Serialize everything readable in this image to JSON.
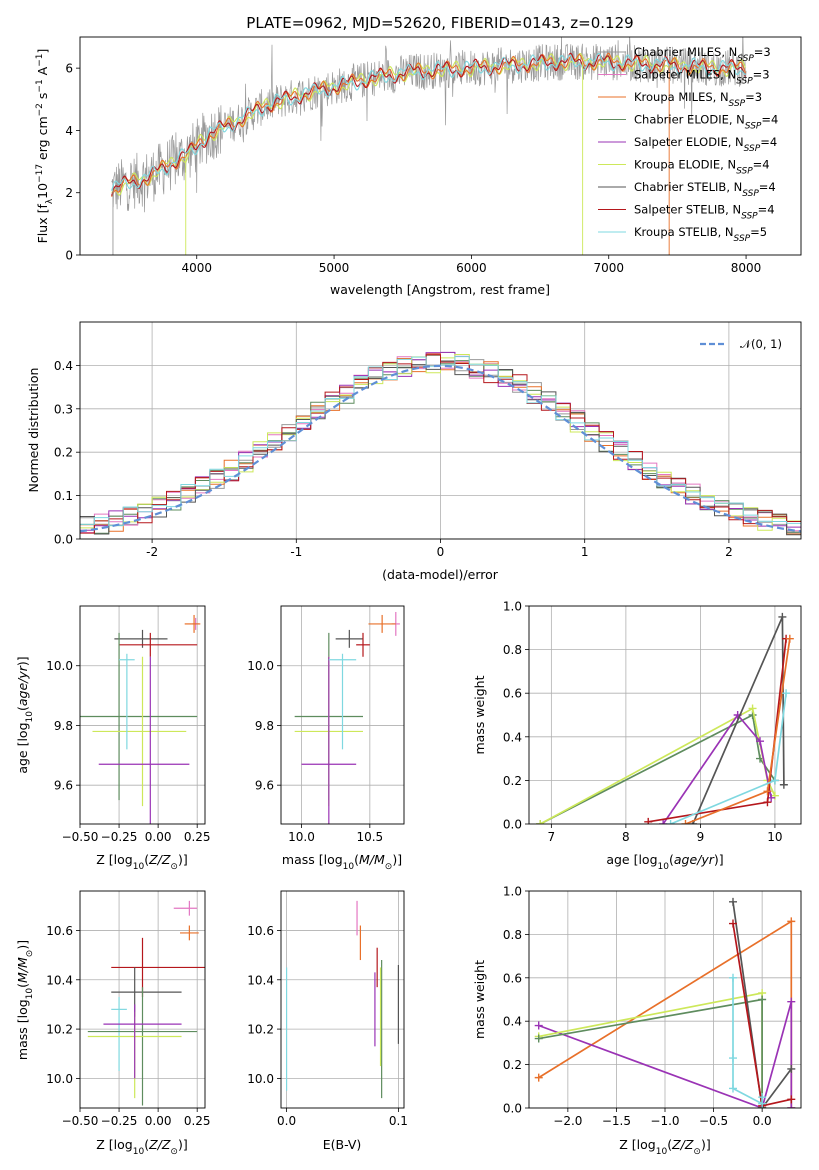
{
  "figure_title": "PLATE=0962, MJD=52620, FIBERID=0143, z=0.129",
  "colors": {
    "Chabrier MILES": "#999999",
    "Salpeter MILES": "#e377c2",
    "Kroupa MILES": "#e8702a",
    "Chabrier ELODIE": "#5e8c5e",
    "Salpeter ELODIE": "#9a33b5",
    "Kroupa ELODIE": "#cde85a",
    "Chabrier STELIB": "#555555",
    "Salpeter STELIB": "#b5171c",
    "Kroupa STELIB": "#7fd8e0",
    "gaussian": "#5f8fd6"
  },
  "chart_data": [
    {
      "id": "spectrum",
      "type": "line",
      "xlabel": "wavelength [Angstrom, rest frame]",
      "ylabel_parts": [
        "Flux [f",
        "λ",
        "10",
        "−17",
        " erg cm",
        "−2",
        " s",
        "−1",
        " A",
        "−1",
        "]"
      ],
      "xlim": [
        3150,
        8400
      ],
      "ylim": [
        0,
        7.0
      ],
      "xticks": [
        4000,
        5000,
        6000,
        7000,
        8000
      ],
      "yticks": [
        0,
        2,
        4,
        6
      ],
      "grid": false,
      "legend_position": "right",
      "legend": [
        {
          "pre": "Chabrier MILES, N",
          "sub": "SSP",
          "post": "=3",
          "key": "Chabrier MILES"
        },
        {
          "pre": "Salpeter MILES, N",
          "sub": "SSP",
          "post": "=3",
          "key": "Salpeter MILES"
        },
        {
          "pre": "Kroupa MILES, N",
          "sub": "SSP",
          "post": "=3",
          "key": "Kroupa MILES"
        },
        {
          "pre": "Chabrier ELODIE, N",
          "sub": "SSP",
          "post": "=4",
          "key": "Chabrier ELODIE"
        },
        {
          "pre": "Salpeter ELODIE, N",
          "sub": "SSP",
          "post": "=4",
          "key": "Salpeter ELODIE"
        },
        {
          "pre": "Kroupa ELODIE, N",
          "sub": "SSP",
          "post": "=4",
          "key": "Kroupa ELODIE"
        },
        {
          "pre": "Chabrier STELIB, N",
          "sub": "SSP",
          "post": "=4",
          "key": "Chabrier STELIB"
        },
        {
          "pre": "Salpeter STELIB, N",
          "sub": "SSP",
          "post": "=4",
          "key": "Salpeter STELIB"
        },
        {
          "pre": "Kroupa STELIB, N",
          "sub": "SSP",
          "post": "=5",
          "key": "Kroupa STELIB"
        }
      ],
      "continuum": [
        [
          3380,
          2.1
        ],
        [
          3500,
          2.3
        ],
        [
          3650,
          2.5
        ],
        [
          3800,
          2.9
        ],
        [
          3950,
          3.3
        ],
        [
          4100,
          3.9
        ],
        [
          4300,
          4.3
        ],
        [
          4500,
          4.8
        ],
        [
          4800,
          5.2
        ],
        [
          5000,
          5.4
        ],
        [
          5300,
          5.7
        ],
        [
          5600,
          5.9
        ],
        [
          6000,
          6.0
        ],
        [
          6300,
          6.1
        ],
        [
          6600,
          6.2
        ],
        [
          7000,
          6.2
        ],
        [
          7400,
          6.1
        ],
        [
          7800,
          6.0
        ],
        [
          8000,
          6.0
        ]
      ]
    },
    {
      "id": "residuals",
      "type": "line",
      "xlabel": "(data-model)/error",
      "ylabel": "Normed distribution",
      "xlim": [
        -2.5,
        2.5
      ],
      "ylim": [
        0,
        0.5
      ],
      "xticks": [
        -2,
        -1,
        0,
        1,
        2
      ],
      "yticks": [
        0.0,
        0.1,
        0.2,
        0.3,
        0.4
      ],
      "grid": true,
      "legend_position": "top-right",
      "legend_label": "𝒩(0, 1)",
      "bin_width": 0.1,
      "bin_start": -2.5
    },
    {
      "id": "age-vs-Z",
      "type": "scatter",
      "xlabel": "Z [log10(Z/Z⊙)]",
      "ylabel": "age [log10(age/yr)]",
      "xlim": [
        -0.5,
        0.3
      ],
      "ylim": [
        9.47,
        10.2
      ],
      "xticks": [
        -0.5,
        -0.25,
        0.0,
        0.25
      ],
      "xticklabels": [
        "−0.50",
        "−0.25",
        "0.00",
        "0.25"
      ],
      "yticks": [
        9.6,
        9.8,
        10.0
      ],
      "grid": true,
      "points": [
        {
          "series": "Salpeter MILES",
          "x": 0.24,
          "y": 10.14,
          "xerr": [
            0.02,
            0.02
          ],
          "yerr": [
            0.02,
            0.02
          ]
        },
        {
          "series": "Kroupa MILES",
          "x": 0.23,
          "y": 10.14,
          "xerr": [
            0.06,
            0.04
          ],
          "yerr": [
            0.03,
            0.03
          ]
        },
        {
          "series": "Chabrier STELIB",
          "x": -0.1,
          "y": 10.09,
          "xerr": [
            0.18,
            0.16
          ],
          "yerr": [
            0.03,
            0.03
          ]
        },
        {
          "series": "Salpeter STELIB",
          "x": -0.05,
          "y": 10.07,
          "xerr": [
            0.2,
            0.3
          ],
          "yerr": [
            0.04,
            0.04
          ]
        },
        {
          "series": "Chabrier ELODIE",
          "x": -0.25,
          "y": 9.83,
          "xerr": [
            0.25,
            0.5
          ],
          "yerr": [
            0.28,
            0.28
          ]
        },
        {
          "series": "Kroupa ELODIE",
          "x": -0.1,
          "y": 9.78,
          "xerr": [
            0.32,
            0.28
          ],
          "yerr": [
            0.25,
            0.25
          ]
        },
        {
          "series": "Salpeter ELODIE",
          "x": -0.05,
          "y": 9.67,
          "xerr": [
            0.33,
            0.25
          ],
          "yerr": [
            0.36,
            0.36
          ]
        },
        {
          "series": "Kroupa STELIB",
          "x": -0.2,
          "y": 10.02,
          "xerr": [
            0.05,
            0.05
          ],
          "yerr": [
            0.3,
            0.02
          ]
        }
      ]
    },
    {
      "id": "age-vs-mass",
      "type": "scatter",
      "xlabel": "mass [log10(M/M⊙)]",
      "ylabel": "",
      "xlim": [
        9.85,
        10.75
      ],
      "ylim": [
        9.47,
        10.2
      ],
      "xticks": [
        10.0,
        10.5
      ],
      "xticklabels": [
        "10.0",
        "10.5"
      ],
      "yticks": [
        9.6,
        9.8,
        10.0
      ],
      "grid": true,
      "points": [
        {
          "series": "Salpeter MILES",
          "x": 10.69,
          "y": 10.14,
          "xerr": [
            0.03,
            0.03
          ],
          "yerr": [
            0.04,
            0.04
          ]
        },
        {
          "series": "Kroupa MILES",
          "x": 10.59,
          "y": 10.14,
          "xerr": [
            0.1,
            0.1
          ],
          "yerr": [
            0.03,
            0.03
          ]
        },
        {
          "series": "Chabrier STELIB",
          "x": 10.35,
          "y": 10.09,
          "xerr": [
            0.1,
            0.1
          ],
          "yerr": [
            0.03,
            0.03
          ]
        },
        {
          "series": "Salpeter STELIB",
          "x": 10.45,
          "y": 10.07,
          "xerr": [
            0.05,
            0.05
          ],
          "yerr": [
            0.04,
            0.04
          ]
        },
        {
          "series": "Chabrier ELODIE",
          "x": 10.2,
          "y": 9.83,
          "xerr": [
            0.25,
            0.25
          ],
          "yerr": [
            0.28,
            0.28
          ]
        },
        {
          "series": "Kroupa ELODIE",
          "x": 10.2,
          "y": 9.78,
          "xerr": [
            0.25,
            0.25
          ],
          "yerr": [
            0.25,
            0.25
          ]
        },
        {
          "series": "Salpeter ELODIE",
          "x": 10.2,
          "y": 9.67,
          "xerr": [
            0.2,
            0.2
          ],
          "yerr": [
            0.36,
            0.36
          ]
        },
        {
          "series": "Kroupa STELIB",
          "x": 10.3,
          "y": 10.02,
          "xerr": [
            0.1,
            0.1
          ],
          "yerr": [
            0.3,
            0.02
          ]
        }
      ]
    },
    {
      "id": "mass-weight-vs-age",
      "type": "line",
      "xlabel": "age [log10(age/yr)]",
      "ylabel": "mass weight",
      "xlim": [
        6.7,
        10.35
      ],
      "ylim": [
        0,
        1.0
      ],
      "xticks": [
        7,
        8,
        9,
        10
      ],
      "xticklabels": [
        "7",
        "8",
        "9",
        "10"
      ],
      "yticks": [
        0.0,
        0.2,
        0.4,
        0.6,
        0.8,
        1.0
      ],
      "grid": true,
      "series": [
        {
          "name": "Chabrier ELODIE",
          "points": [
            [
              6.85,
              0.0
            ],
            [
              9.7,
              0.5
            ],
            [
              9.8,
              0.3
            ],
            [
              10.0,
              0.2
            ]
          ]
        },
        {
          "name": "Kroupa ELODIE",
          "points": [
            [
              6.85,
              0.0
            ],
            [
              9.7,
              0.53
            ],
            [
              9.9,
              0.2
            ],
            [
              10.0,
              0.13
            ]
          ]
        },
        {
          "name": "Salpeter ELODIE",
          "points": [
            [
              8.5,
              0.0
            ],
            [
              9.5,
              0.5
            ],
            [
              9.8,
              0.38
            ],
            [
              9.95,
              0.12
            ]
          ]
        },
        {
          "name": "Chabrier STELIB",
          "points": [
            [
              8.9,
              0.0
            ],
            [
              10.1,
              0.95
            ],
            [
              10.12,
              0.18
            ]
          ]
        },
        {
          "name": "Salpeter STELIB",
          "points": [
            [
              8.3,
              0.01
            ],
            [
              9.9,
              0.1
            ],
            [
              10.15,
              0.85
            ]
          ]
        },
        {
          "name": "Kroupa MILES",
          "points": [
            [
              8.8,
              0.0
            ],
            [
              9.9,
              0.15
            ],
            [
              10.2,
              0.85
            ]
          ]
        },
        {
          "name": "Kroupa STELIB",
          "points": [
            [
              8.6,
              0.0
            ],
            [
              10.0,
              0.2
            ],
            [
              10.15,
              0.6
            ]
          ]
        }
      ]
    },
    {
      "id": "mass-vs-Z",
      "type": "scatter",
      "xlabel": "Z [log10(Z/Z⊙)]",
      "ylabel": "mass [log10(M/M⊙)]",
      "xlim": [
        -0.5,
        0.3
      ],
      "ylim": [
        9.88,
        10.76
      ],
      "xticks": [
        -0.5,
        -0.25,
        0.0,
        0.25
      ],
      "xticklabels": [
        "−0.50",
        "−0.25",
        "0.00",
        "0.25"
      ],
      "yticks": [
        10.0,
        10.2,
        10.4,
        10.6
      ],
      "grid": true,
      "points": [
        {
          "series": "Salpeter MILES",
          "x": 0.2,
          "y": 10.69,
          "xerr": [
            0.1,
            0.05
          ],
          "yerr": [
            0.03,
            0.03
          ]
        },
        {
          "series": "Kroupa MILES",
          "x": 0.2,
          "y": 10.59,
          "xerr": [
            0.06,
            0.06
          ],
          "yerr": [
            0.03,
            0.03
          ]
        },
        {
          "series": "Salpeter STELIB",
          "x": -0.1,
          "y": 10.45,
          "xerr": [
            0.2,
            0.45
          ],
          "yerr": [
            0.12,
            0.12
          ]
        },
        {
          "series": "Chabrier STELIB",
          "x": -0.15,
          "y": 10.35,
          "xerr": [
            0.15,
            0.3
          ],
          "yerr": [
            0.1,
            0.1
          ]
        },
        {
          "series": "Kroupa STELIB",
          "x": -0.25,
          "y": 10.28,
          "xerr": [
            0.05,
            0.05
          ],
          "yerr": [
            0.25,
            0.05
          ]
        },
        {
          "series": "Chabrier ELODIE",
          "x": -0.1,
          "y": 10.19,
          "xerr": [
            0.35,
            0.35
          ],
          "yerr": [
            0.3,
            0.18
          ]
        },
        {
          "series": "Kroupa ELODIE",
          "x": -0.15,
          "y": 10.17,
          "xerr": [
            0.3,
            0.3
          ],
          "yerr": [
            0.25,
            0.1
          ]
        },
        {
          "series": "Salpeter ELODIE",
          "x": -0.15,
          "y": 10.22,
          "xerr": [
            0.2,
            0.3
          ],
          "yerr": [
            0.22,
            0.08
          ]
        }
      ]
    },
    {
      "id": "mass-vs-EBV",
      "type": "scatter",
      "xlabel": "E(B-V)",
      "ylabel": "",
      "xlim": [
        -0.005,
        0.105
      ],
      "ylim": [
        9.88,
        10.76
      ],
      "xticks": [
        0.0,
        0.1
      ],
      "xticklabels": [
        "0.0",
        "0.1"
      ],
      "yticks": [
        10.0,
        10.2,
        10.4,
        10.6
      ],
      "grid": true,
      "points": [
        {
          "series": "Salpeter MILES",
          "x": 0.063,
          "y": 10.65,
          "xerr": [
            0,
            0
          ],
          "yerr": [
            0.07,
            0.07
          ]
        },
        {
          "series": "Kroupa MILES",
          "x": 0.066,
          "y": 10.55,
          "xerr": [
            0,
            0
          ],
          "yerr": [
            0.07,
            0.07
          ]
        },
        {
          "series": "Salpeter STELIB",
          "x": 0.081,
          "y": 10.45,
          "xerr": [
            0,
            0
          ],
          "yerr": [
            0.08,
            0.08
          ]
        },
        {
          "series": "Salpeter ELODIE",
          "x": 0.079,
          "y": 10.28,
          "xerr": [
            0,
            0
          ],
          "yerr": [
            0.15,
            0.15
          ]
        },
        {
          "series": "Chabrier ELODIE",
          "x": 0.085,
          "y": 10.2,
          "xerr": [
            0,
            0
          ],
          "yerr": [
            0.28,
            0.28
          ]
        },
        {
          "series": "Kroupa ELODIE",
          "x": 0.084,
          "y": 10.25,
          "xerr": [
            0,
            0
          ],
          "yerr": [
            0.2,
            0.2
          ]
        },
        {
          "series": "Chabrier STELIB",
          "x": 0.1,
          "y": 10.3,
          "xerr": [
            0,
            0
          ],
          "yerr": [
            0.16,
            0.16
          ]
        },
        {
          "series": "Kroupa STELIB",
          "x": 0.0,
          "y": 10.2,
          "xerr": [
            0,
            0
          ],
          "yerr": [
            0.25,
            0.25
          ]
        }
      ]
    },
    {
      "id": "mass-weight-vs-Z",
      "type": "line",
      "xlabel": "Z [log10(Z/Z⊙)]",
      "ylabel": "mass weight",
      "xlim": [
        -2.4,
        0.4
      ],
      "ylim": [
        0,
        1.0
      ],
      "xticks": [
        -2.0,
        -1.5,
        -1.0,
        -0.5,
        0.0
      ],
      "xticklabels": [
        "−2.0",
        "−1.5",
        "−1.0",
        "−0.5",
        "0.0"
      ],
      "yticks": [
        0.0,
        0.2,
        0.4,
        0.6,
        0.8,
        1.0
      ],
      "grid": true,
      "series": [
        {
          "name": "Kroupa MILES",
          "points": [
            [
              -2.3,
              0.14
            ],
            [
              0.3,
              0.86
            ],
            [
              0.3,
              0.0
            ]
          ]
        },
        {
          "name": "Salpeter ELODIE",
          "points": [
            [
              -2.3,
              0.38
            ],
            [
              0.0,
              0.0
            ],
            [
              0.3,
              0.49
            ],
            [
              0.3,
              0.0
            ]
          ]
        },
        {
          "name": "Kroupa ELODIE",
          "points": [
            [
              -2.3,
              0.33
            ],
            [
              0.0,
              0.53
            ],
            [
              0.0,
              0.0
            ]
          ]
        },
        {
          "name": "Chabrier ELODIE",
          "points": [
            [
              -2.3,
              0.32
            ],
            [
              0.0,
              0.5
            ],
            [
              0.0,
              0.0
            ]
          ]
        },
        {
          "name": "Chabrier STELIB",
          "points": [
            [
              -0.3,
              0.95
            ],
            [
              0.0,
              0.0
            ],
            [
              0.3,
              0.18
            ]
          ]
        },
        {
          "name": "Salpeter STELIB",
          "points": [
            [
              -0.3,
              0.85
            ],
            [
              0.0,
              0.01
            ],
            [
              0.3,
              0.04
            ]
          ]
        },
        {
          "name": "Kroupa STELIB",
          "points": [
            [
              -0.3,
              0.6
            ],
            [
              -0.3,
              0.23
            ],
            [
              -0.3,
              0.09
            ],
            [
              0.0,
              0.02
            ],
            [
              0.0,
              0.05
            ]
          ]
        }
      ]
    }
  ]
}
